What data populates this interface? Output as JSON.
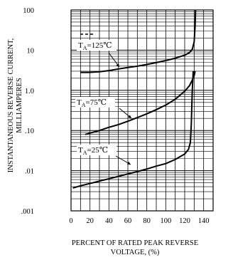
{
  "chart_data": {
    "type": "line",
    "ylabel_lines": [
      "INSTANTANEOUS REVERSE CURRENT,",
      "MILLIAMPERES"
    ],
    "xlabel_lines": [
      "PERCENT OF RATED PEAK REVERSE",
      "VOLTAGE, (%)"
    ],
    "xlim": [
      0,
      150
    ],
    "ylim": [
      0.001,
      100
    ],
    "yscale": "log",
    "grid": true,
    "x_ticks": [
      0,
      20,
      40,
      60,
      80,
      100,
      120,
      140
    ],
    "x_tick_labels": [
      "0",
      "20",
      "40",
      "60",
      "80",
      "100",
      "120",
      "140"
    ],
    "y_ticks": [
      100,
      10,
      1,
      0.1,
      0.01,
      0.001
    ],
    "y_tick_labels": [
      "100",
      "10",
      "1.0",
      ".10",
      ".01",
      ".001"
    ],
    "series": [
      {
        "name": "TA=125℃",
        "label_main": "T",
        "label_sub": "A",
        "label_rest": "=125℃",
        "points": [
          [
            10,
            2.8
          ],
          [
            20,
            2.8
          ],
          [
            30,
            2.9
          ],
          [
            40,
            3.1
          ],
          [
            50,
            3.4
          ],
          [
            60,
            3.7
          ],
          [
            70,
            4.0
          ],
          [
            80,
            4.4
          ],
          [
            90,
            4.9
          ],
          [
            100,
            5.5
          ],
          [
            110,
            6.3
          ],
          [
            120,
            7.5
          ],
          [
            125,
            8.7
          ],
          [
            128,
            10.5
          ],
          [
            130,
            16
          ],
          [
            131,
            40
          ],
          [
            131.5,
            100
          ]
        ]
      },
      {
        "name": "TA=75℃",
        "label_main": "T",
        "label_sub": "A",
        "label_rest": "=75℃",
        "points": [
          [
            15,
            0.08
          ],
          [
            30,
            0.1
          ],
          [
            40,
            0.12
          ],
          [
            50,
            0.14
          ],
          [
            60,
            0.17
          ],
          [
            70,
            0.21
          ],
          [
            80,
            0.26
          ],
          [
            90,
            0.33
          ],
          [
            100,
            0.43
          ],
          [
            110,
            0.6
          ],
          [
            120,
            0.95
          ],
          [
            125,
            1.3
          ],
          [
            128,
            1.8
          ],
          [
            130,
            2.3
          ],
          [
            131,
            3.0
          ]
        ]
      },
      {
        "name": "TA=25℃",
        "label_main": "T",
        "label_sub": "A",
        "label_rest": "=25℃",
        "points": [
          [
            2,
            0.0037
          ],
          [
            10,
            0.0042
          ],
          [
            20,
            0.0048
          ],
          [
            30,
            0.0055
          ],
          [
            40,
            0.0063
          ],
          [
            50,
            0.0072
          ],
          [
            60,
            0.0083
          ],
          [
            70,
            0.0095
          ],
          [
            80,
            0.011
          ],
          [
            90,
            0.013
          ],
          [
            100,
            0.015
          ],
          [
            110,
            0.019
          ],
          [
            120,
            0.026
          ],
          [
            124,
            0.034
          ],
          [
            126,
            0.05
          ],
          [
            127,
            0.15
          ],
          [
            128,
            1.0
          ],
          [
            129,
            3.0
          ]
        ]
      }
    ]
  }
}
